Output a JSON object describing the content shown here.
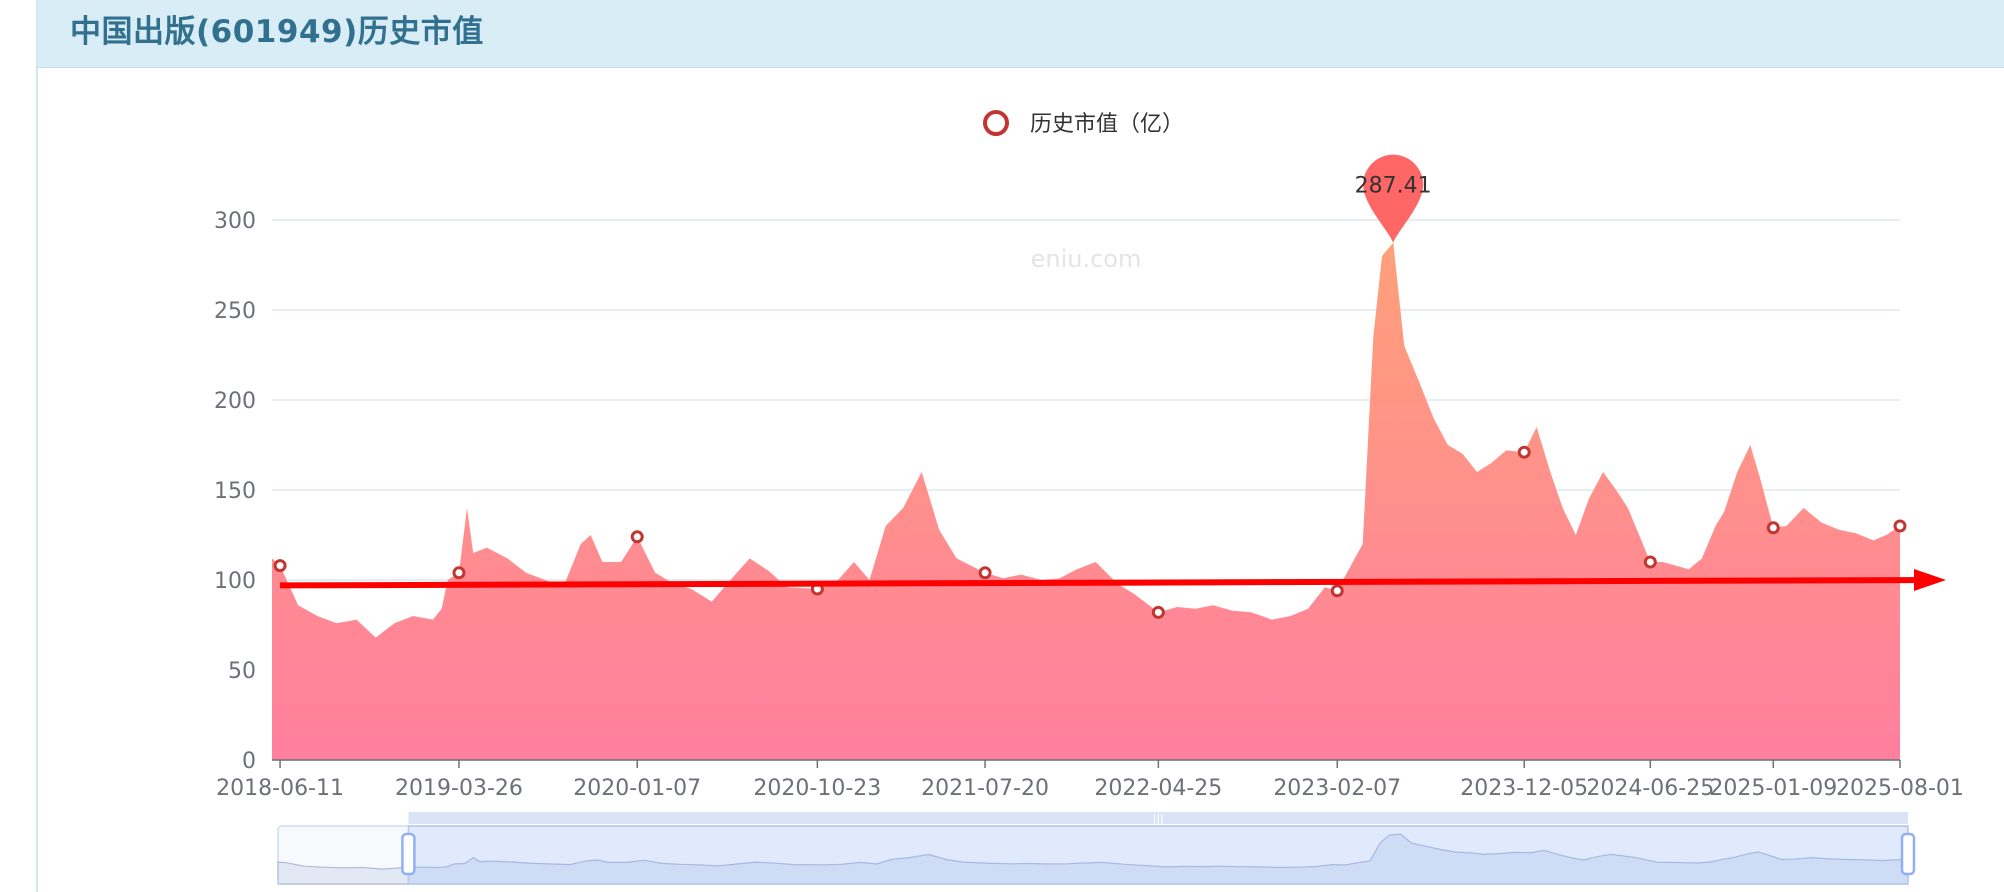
{
  "header": {
    "title": "中国出版(601949)历史市值"
  },
  "watermark": "eniu.com",
  "colors": {
    "header_bg": "#d9edf7",
    "title": "#31708f",
    "area_top": "#ffa07a",
    "area_bottom": "#ff7f9e",
    "marker": "#c23531",
    "pin": "#ff6666",
    "trend_arrow": "#ff0000",
    "grid": "#e0e6f1",
    "datazoom_fill": "#e6eeff",
    "datazoom_border": "#b8c8ea"
  },
  "chart_data": {
    "type": "area",
    "title": "",
    "legend": [
      "历史市值（亿）"
    ],
    "legend_position": "top-center",
    "ylim": [
      0,
      300
    ],
    "y_ticks": [
      0,
      50,
      100,
      150,
      200,
      250,
      300
    ],
    "x_tick_labels": [
      "2018-06-11",
      "2019-03-26",
      "2020-01-07",
      "2020-10-23",
      "2021-07-20",
      "2022-04-25",
      "2023-02-07",
      "2023-12-05",
      "2024-06-25",
      "2025-01-09",
      "2025-08-01"
    ],
    "grid": true,
    "max_point": {
      "date": "2023-05-08",
      "value": 287.41,
      "label": "287.41"
    },
    "series": [
      {
        "name": "历史市值（亿）",
        "x": [
          "2018-05-29",
          "2018-06-11",
          "2018-07-10",
          "2018-08-10",
          "2018-09-10",
          "2018-10-12",
          "2018-11-12",
          "2018-12-12",
          "2019-01-11",
          "2019-02-12",
          "2019-02-26",
          "2019-03-08",
          "2019-03-26",
          "2019-04-08",
          "2019-04-18",
          "2019-05-10",
          "2019-06-12",
          "2019-07-12",
          "2019-08-12",
          "2019-09-10",
          "2019-10-08",
          "2019-10-24",
          "2019-11-12",
          "2019-12-12",
          "2020-01-07",
          "2020-02-05",
          "2020-03-05",
          "2020-04-03",
          "2020-05-06",
          "2020-06-05",
          "2020-07-06",
          "2020-08-06",
          "2020-09-04",
          "2020-10-23",
          "2020-11-20",
          "2020-12-21",
          "2021-01-15",
          "2021-02-10",
          "2021-03-10",
          "2021-04-09",
          "2021-05-07",
          "2021-06-04",
          "2021-07-20",
          "2021-08-18",
          "2021-09-16",
          "2021-10-19",
          "2021-11-17",
          "2021-12-15",
          "2022-01-14",
          "2022-02-18",
          "2022-03-18",
          "2022-04-25",
          "2022-05-25",
          "2022-06-24",
          "2022-07-22",
          "2022-08-22",
          "2022-09-22",
          "2022-10-25",
          "2022-11-24",
          "2022-12-22",
          "2023-01-18",
          "2023-02-07",
          "2023-03-01",
          "2023-03-20",
          "2023-04-06",
          "2023-04-20",
          "2023-05-08",
          "2023-05-26",
          "2023-06-19",
          "2023-07-12",
          "2023-08-04",
          "2023-08-28",
          "2023-09-20",
          "2023-10-13",
          "2023-11-06",
          "2023-12-05",
          "2023-12-25",
          "2024-01-16",
          "2024-02-05",
          "2024-02-26",
          "2024-03-18",
          "2024-04-10",
          "2024-05-01",
          "2024-05-20",
          "2024-06-25",
          "2024-07-15",
          "2024-08-05",
          "2024-08-26",
          "2024-09-16",
          "2024-10-08",
          "2024-10-22",
          "2024-11-12",
          "2024-12-03",
          "2024-12-20",
          "2025-01-09",
          "2025-01-30",
          "2025-02-27",
          "2025-03-27",
          "2025-04-24",
          "2025-05-22",
          "2025-06-19",
          "2025-07-10",
          "2025-08-01"
        ],
        "values": [
          112,
          108,
          86,
          80,
          76,
          78,
          68,
          76,
          80,
          78,
          84,
          100,
          104,
          140,
          115,
          118,
          112,
          104,
          100,
          96,
          120,
          125,
          110,
          110,
          124,
          104,
          98,
          95,
          88,
          100,
          112,
          105,
          96,
          95,
          98,
          110,
          100,
          130,
          140,
          160,
          128,
          112,
          104,
          101,
          103,
          100,
          101,
          106,
          110,
          98,
          92,
          82,
          85,
          84,
          86,
          83,
          82,
          78,
          80,
          84,
          96,
          94,
          108,
          120,
          235,
          280,
          287.41,
          230,
          210,
          190,
          175,
          170,
          160,
          165,
          172,
          171,
          185,
          160,
          140,
          125,
          145,
          160,
          150,
          140,
          110,
          110,
          108,
          106,
          112,
          130,
          138,
          160,
          175,
          155,
          129,
          130,
          140,
          132,
          128,
          126,
          122,
          125,
          130
        ]
      }
    ],
    "markers": [
      {
        "date": "2018-06-11",
        "value": 108
      },
      {
        "date": "2019-03-26",
        "value": 104
      },
      {
        "date": "2020-01-07",
        "value": 124
      },
      {
        "date": "2020-10-23",
        "value": 95
      },
      {
        "date": "2021-07-20",
        "value": 104
      },
      {
        "date": "2022-04-25",
        "value": 82
      },
      {
        "date": "2023-02-07",
        "value": 94
      },
      {
        "date": "2023-12-05",
        "value": 171
      },
      {
        "date": "2024-06-25",
        "value": 110
      },
      {
        "date": "2025-01-09",
        "value": 129
      },
      {
        "date": "2025-08-01",
        "value": 130
      }
    ],
    "trend_line": {
      "start": {
        "date": "2018-06-11",
        "value": 97
      },
      "end": {
        "date": "2025-08-01",
        "value": 100
      }
    },
    "datazoom_range": {
      "start": 0.08,
      "end": 1.0
    }
  }
}
